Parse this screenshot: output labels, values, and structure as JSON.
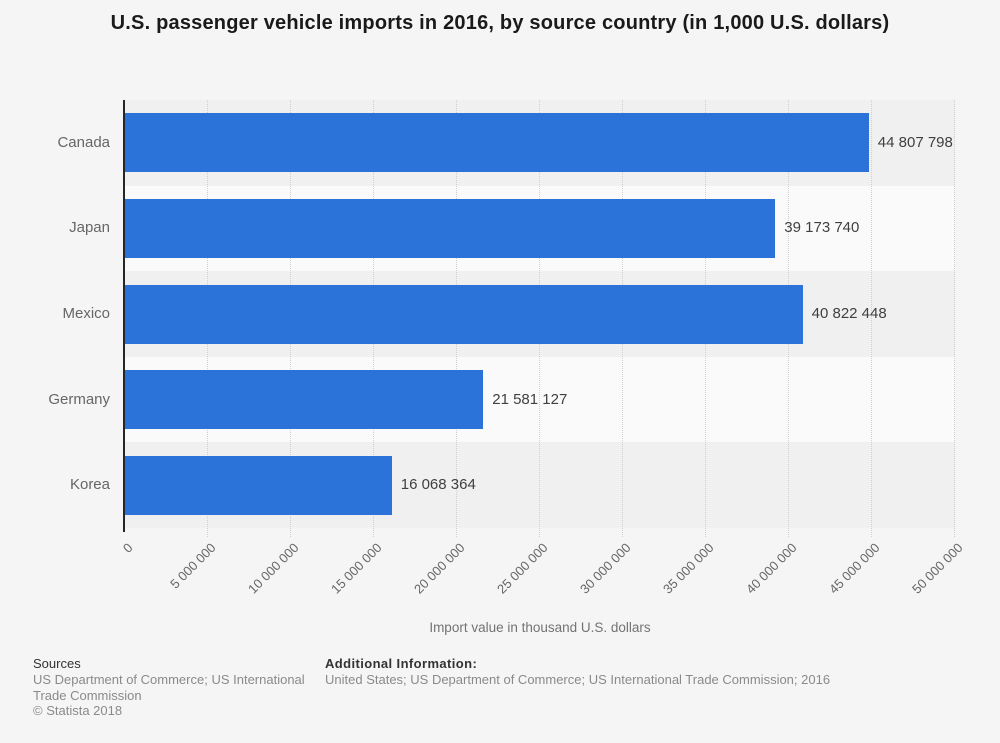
{
  "title": "U.S. passenger vehicle imports in 2016, by source country (in 1,000 U.S. dollars)",
  "chart_data": {
    "type": "bar",
    "orientation": "horizontal",
    "title": "U.S. passenger vehicle imports in 2016, by source country (in 1,000 U.S. dollars)",
    "categories": [
      "Canada",
      "Japan",
      "Mexico",
      "Germany",
      "Korea"
    ],
    "values": [
      44807798,
      39173740,
      40822448,
      21581127,
      16068364
    ],
    "value_labels": [
      "44 807 798",
      "39 173 740",
      "40 822 448",
      "21 581 127",
      "16 068 364"
    ],
    "xlabel": "Import value in thousand U.S. dollars",
    "ylabel": "",
    "xlim": [
      0,
      50000000
    ],
    "x_ticks": [
      0,
      5000000,
      10000000,
      15000000,
      20000000,
      25000000,
      30000000,
      35000000,
      40000000,
      45000000,
      50000000
    ],
    "x_tick_labels": [
      "0",
      "5 000 000",
      "10 000 000",
      "15 000 000",
      "20 000 000",
      "25 000 000",
      "30 000 000",
      "35 000 000",
      "40 000 000",
      "45 000 000",
      "50 000 000"
    ],
    "grid": true,
    "legend": "none",
    "bar_color": "#2b72d9",
    "band_colors": [
      "#f0f0f0",
      "#fafafa"
    ]
  },
  "footer": {
    "sources_heading": "Sources",
    "sources_text": "US Department of Commerce; US International Trade Commission",
    "copyright": "© Statista 2018",
    "additional_heading": "Additional Information:",
    "additional_text": "United States; US Department of Commerce; US International Trade Commission; 2016"
  }
}
